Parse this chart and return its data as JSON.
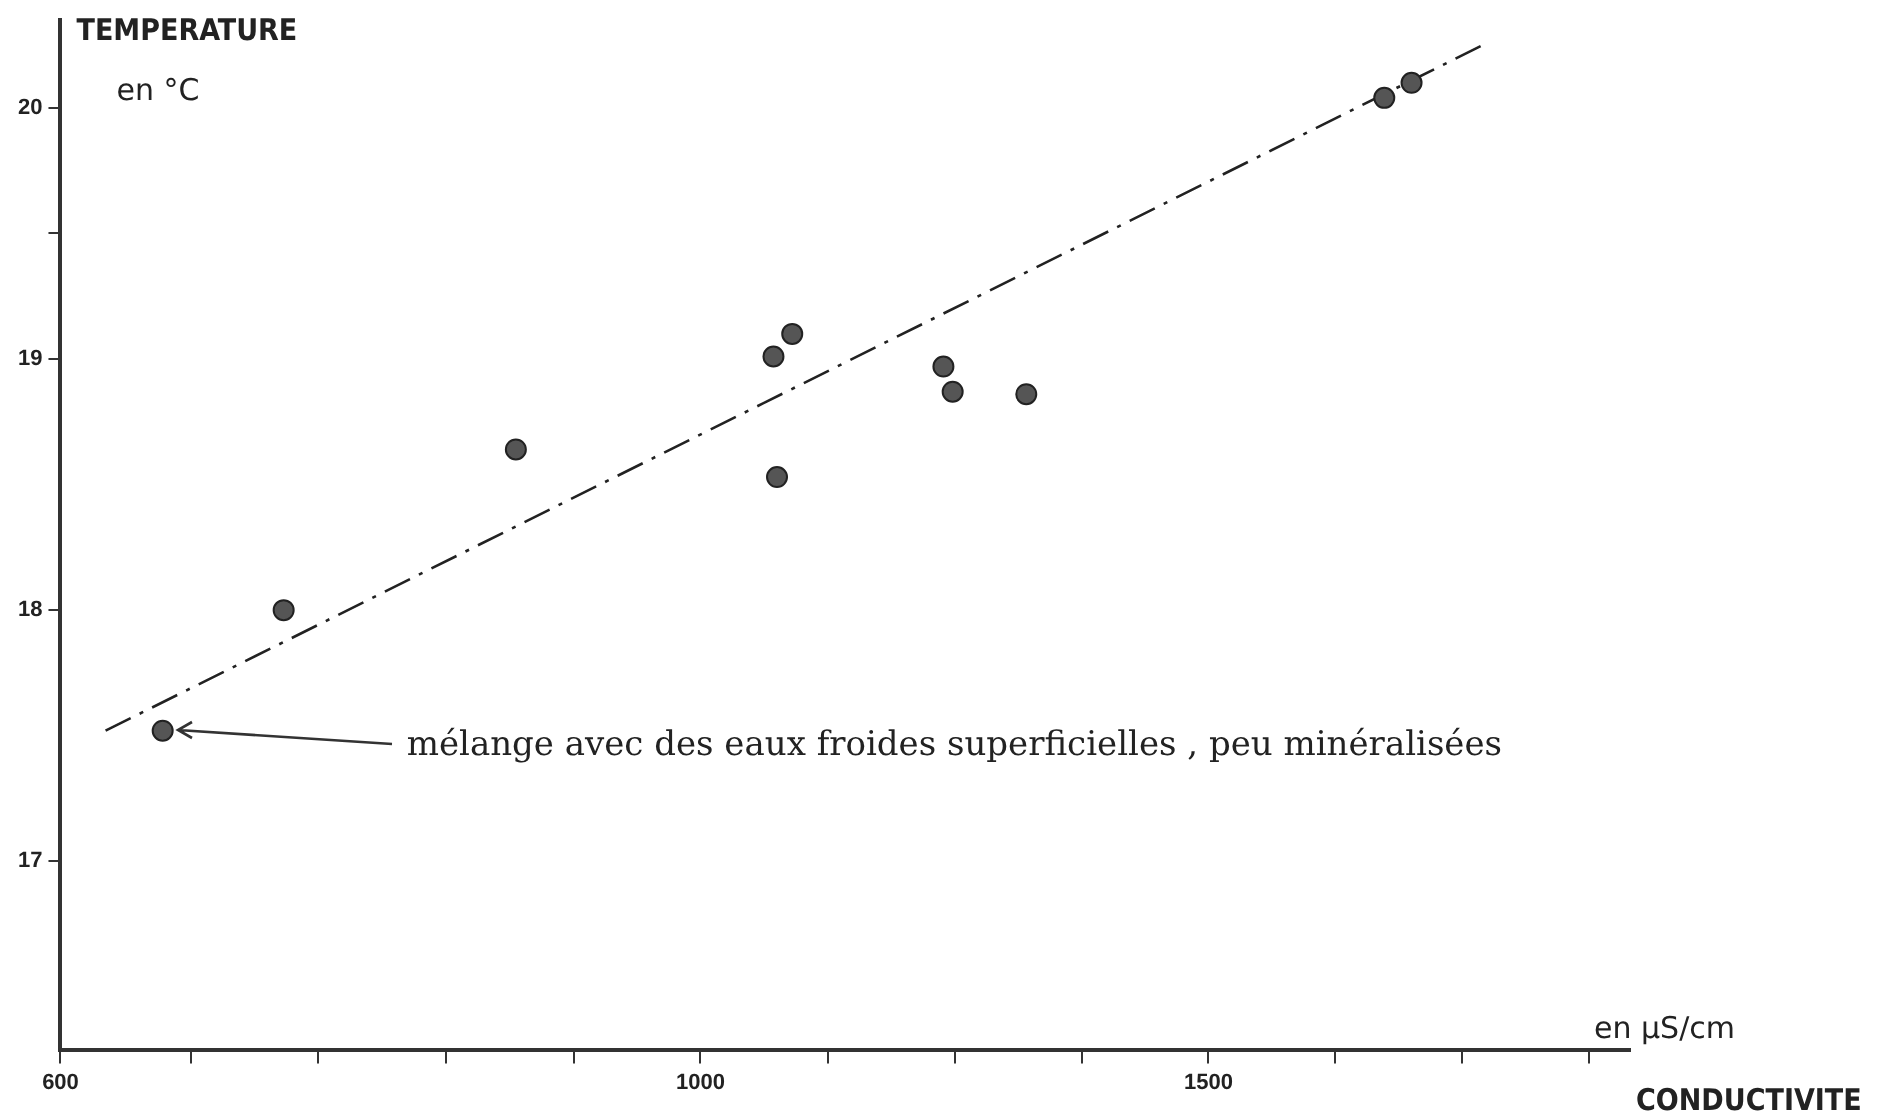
{
  "chart_data": {
    "type": "scatter",
    "ylabel": "TEMPERATURE",
    "xlabel": "CONDUCTIVITE",
    "log": "x",
    "xlim": [
      600,
      2100
    ],
    "xticks": [
      600,
      {
        "value": 666,
        "label": null
      },
      {
        "value": 737,
        "label": null
      },
      {
        "value": 816,
        "label": null
      },
      {
        "value": 904,
        "label": null
      },
      1000,
      {
        "value": 1107,
        "label": null
      },
      {
        "value": 1225,
        "label": null
      },
      {
        "value": 1356,
        "label": null
      },
      1500,
      {
        "value": 1660,
        "label": null
      },
      {
        "value": 1837,
        "label": null
      },
      {
        "value": 2033,
        "label": null
      }
    ],
    "ylim": [
      16.25,
      20.35
    ],
    "yticks": [
      17,
      18,
      19,
      {
        "value": 19.5,
        "label": null
      },
      20
    ],
    "grid": false,
    "marker": "circle",
    "series": [
      {
        "type": "scatter",
        "color": "#555555",
        "x": [
          651,
          717,
          863,
          1060,
          1076,
          1063,
          1214,
          1223,
          1297,
          1726,
          1764
        ],
        "values": [
          17.52,
          18.0,
          18.64,
          19.01,
          19.1,
          18.53,
          18.97,
          18.87,
          18.86,
          20.04,
          20.1
        ]
      },
      {
        "type": "line",
        "color": "#222222",
        "line_style": "dashed",
        "marker": "none",
        "x": [
          622,
          1867
        ],
        "values": [
          17.52,
          20.25
        ]
      }
    ],
    "annotations": [
      "en °C",
      "en µS/cm",
      {
        "text": "mélange avec des eaux froides superficielles , peu minéralisées",
        "x": 651,
        "y": 17.52
      }
    ]
  }
}
